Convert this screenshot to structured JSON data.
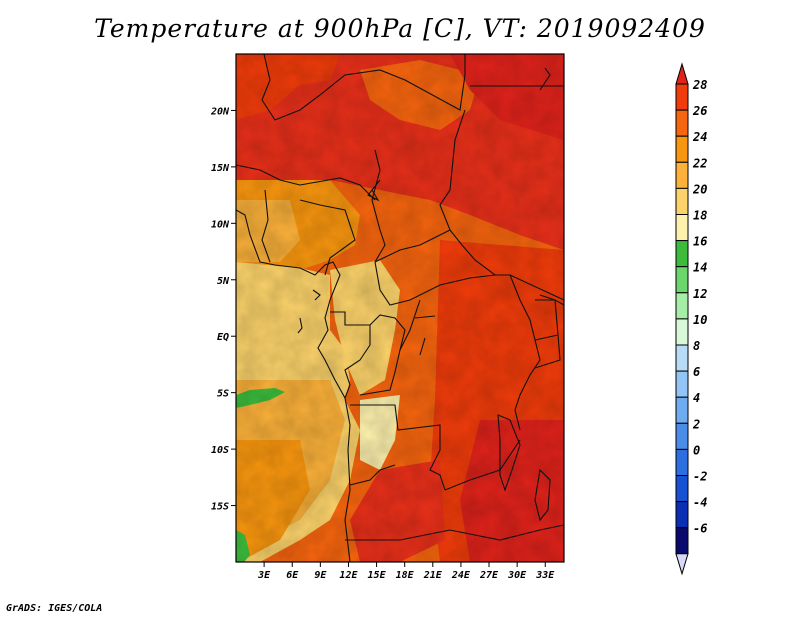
{
  "title": "Temperature at 900hPa [C], VT: 2019092409",
  "footer": "GrADS: IGES/COLA",
  "map": {
    "lat_range": [
      -20,
      25
    ],
    "lon_range": [
      0,
      35
    ],
    "lat_ticks": [
      {
        "value": 20,
        "label": "20N"
      },
      {
        "value": 15,
        "label": "15N"
      },
      {
        "value": 10,
        "label": "10N"
      },
      {
        "value": 5,
        "label": "5N"
      },
      {
        "value": 0,
        "label": "EQ"
      },
      {
        "value": -5,
        "label": "5S"
      },
      {
        "value": -10,
        "label": "10S"
      },
      {
        "value": -15,
        "label": "15S"
      }
    ],
    "lon_ticks": [
      {
        "value": 3,
        "label": "3E"
      },
      {
        "value": 6,
        "label": "6E"
      },
      {
        "value": 9,
        "label": "9E"
      },
      {
        "value": 12,
        "label": "12E"
      },
      {
        "value": 15,
        "label": "15E"
      },
      {
        "value": 18,
        "label": "18E"
      },
      {
        "value": 21,
        "label": "21E"
      },
      {
        "value": 24,
        "label": "24E"
      },
      {
        "value": 27,
        "label": "27E"
      },
      {
        "value": 30,
        "label": "30E"
      },
      {
        "value": 33,
        "label": "33E"
      }
    ]
  },
  "colorbar": {
    "levels": [
      {
        "label": "28",
        "color": "#e0231b"
      },
      {
        "label": "26",
        "color": "#f03c0b"
      },
      {
        "label": "24",
        "color": "#f6650f"
      },
      {
        "label": "22",
        "color": "#f8960f"
      },
      {
        "label": "20",
        "color": "#fbb13a"
      },
      {
        "label": "18",
        "color": "#fcd36b"
      },
      {
        "label": "16",
        "color": "#fdf1ad"
      },
      {
        "label": "14",
        "color": "#3cbb3c"
      },
      {
        "label": "12",
        "color": "#6cd56c"
      },
      {
        "label": "10",
        "color": "#a6eda6"
      },
      {
        "label": "8",
        "color": "#d9f7d9"
      },
      {
        "label": "6",
        "color": "#b8dcf5"
      },
      {
        "label": "4",
        "color": "#92c5f5"
      },
      {
        "label": "2",
        "color": "#6eacef"
      },
      {
        "label": "0",
        "color": "#4a8de8"
      },
      {
        "label": "-2",
        "color": "#2d6fe0"
      },
      {
        "label": "-4",
        "color": "#1750d2"
      },
      {
        "label": "-6",
        "color": "#0a2fb5"
      }
    ],
    "top_color": "#e0231b",
    "bottom_color": "#d8d8f8",
    "lowest_cell_color": "#0a0a6e"
  }
}
